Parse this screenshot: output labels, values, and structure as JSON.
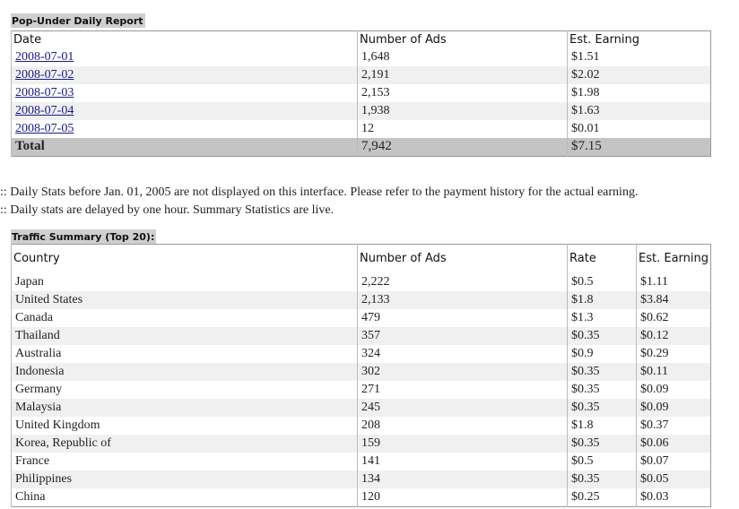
{
  "report": {
    "title": "Pop-Under Daily Report",
    "columns": [
      "Date",
      "Number of Ads",
      "Est. Earning"
    ],
    "rows": [
      [
        "2008-07-01",
        "1,648",
        "$1.51"
      ],
      [
        "2008-07-02",
        "2,191",
        "$2.02"
      ],
      [
        "2008-07-03",
        "2,153",
        "$1.98"
      ],
      [
        "2008-07-04",
        "1,938",
        "$1.63"
      ],
      [
        "2008-07-05",
        "12",
        "$0.01"
      ]
    ],
    "total": [
      "Total",
      "7,942",
      "$7.15"
    ]
  },
  "notes": [
    ":: Daily Stats before Jan. 01, 2005 are not displayed on this interface. Please refer to the payment history for the actual earning.",
    ":: Daily stats are delayed by one hour. Summary Statistics are live."
  ],
  "traffic": {
    "title": "Traffic Summary (Top 20):",
    "columns": [
      "Country",
      "Number of Ads",
      "Rate",
      "Est. Earning"
    ],
    "rows": [
      [
        "Japan",
        "2,222",
        "$0.5",
        "$1.11"
      ],
      [
        "United States",
        "2,133",
        "$1.8",
        "$3.84"
      ],
      [
        "Canada",
        "479",
        "$1.3",
        "$0.62"
      ],
      [
        "Thailand",
        "357",
        "$0.35",
        "$0.12"
      ],
      [
        "Australia",
        "324",
        "$0.9",
        "$0.29"
      ],
      [
        "Indonesia",
        "302",
        "$0.35",
        "$0.11"
      ],
      [
        "Germany",
        "271",
        "$0.35",
        "$0.09"
      ],
      [
        "Malaysia",
        "245",
        "$0.35",
        "$0.09"
      ],
      [
        "United Kingdom",
        "208",
        "$1.8",
        "$0.37"
      ],
      [
        "Korea, Republic of",
        "159",
        "$0.35",
        "$0.06"
      ],
      [
        "France",
        "141",
        "$0.5",
        "$0.07"
      ],
      [
        "Philippines",
        "134",
        "$0.35",
        "$0.05"
      ],
      [
        "China",
        "120",
        "$0.25",
        "$0.03"
      ]
    ]
  }
}
